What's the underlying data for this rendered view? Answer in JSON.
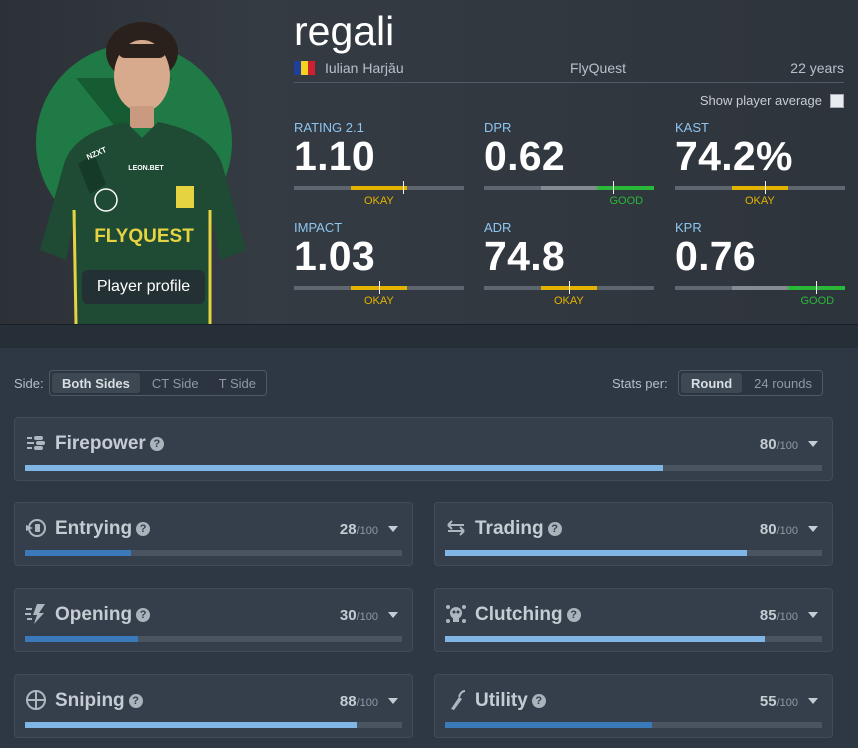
{
  "player": {
    "nickname": "regali",
    "full_name": "Iulian Harjău",
    "team": "FlyQuest",
    "age": "22 years",
    "profile_button": "Player profile",
    "flag_colors": [
      "#1f3f9b",
      "#f4d21f",
      "#ce2030"
    ]
  },
  "show_average_label": "Show player average",
  "stats": [
    {
      "label": "RATING 2.1",
      "value": "1.10",
      "rating": "OKAY",
      "level": 0.64
    },
    {
      "label": "DPR",
      "value": "0.62",
      "rating": "GOOD",
      "level": 0.76
    },
    {
      "label": "KAST",
      "value": "74.2%",
      "rating": "OKAY",
      "level": 0.53
    },
    {
      "label": "IMPACT",
      "value": "1.03",
      "rating": "OKAY",
      "level": 0.5
    },
    {
      "label": "ADR",
      "value": "74.8",
      "rating": "OKAY",
      "level": 0.5
    },
    {
      "label": "KPR",
      "value": "0.76",
      "rating": "GOOD",
      "level": 0.83
    }
  ],
  "side_filter": {
    "label": "Side:",
    "options": [
      "Both Sides",
      "CT Side",
      "T Side"
    ],
    "active": "Both Sides"
  },
  "stats_per": {
    "label": "Stats per:",
    "options": [
      "Round",
      "24 rounds"
    ],
    "active": "Round"
  },
  "categories": [
    {
      "name": "Firepower",
      "score": "80",
      "max": "/100",
      "value": 80,
      "icon": "firepower-icon"
    },
    {
      "name": "Entrying",
      "score": "28",
      "max": "/100",
      "value": 28,
      "icon": "entrying-icon"
    },
    {
      "name": "Trading",
      "score": "80",
      "max": "/100",
      "value": 80,
      "icon": "trading-icon"
    },
    {
      "name": "Opening",
      "score": "30",
      "max": "/100",
      "value": 30,
      "icon": "opening-icon"
    },
    {
      "name": "Clutching",
      "score": "85",
      "max": "/100",
      "value": 85,
      "icon": "clutching-icon"
    },
    {
      "name": "Sniping",
      "score": "88",
      "max": "/100",
      "value": 88,
      "icon": "sniping-icon"
    },
    {
      "name": "Utility",
      "score": "55",
      "max": "/100",
      "value": 55,
      "icon": "utility-icon"
    }
  ],
  "colors": {
    "okay": "#e4b300",
    "good": "#2ab838",
    "bar_high": "#80b6e6",
    "bar_low": "#3a7abb",
    "team_green": "#1f7a45"
  }
}
